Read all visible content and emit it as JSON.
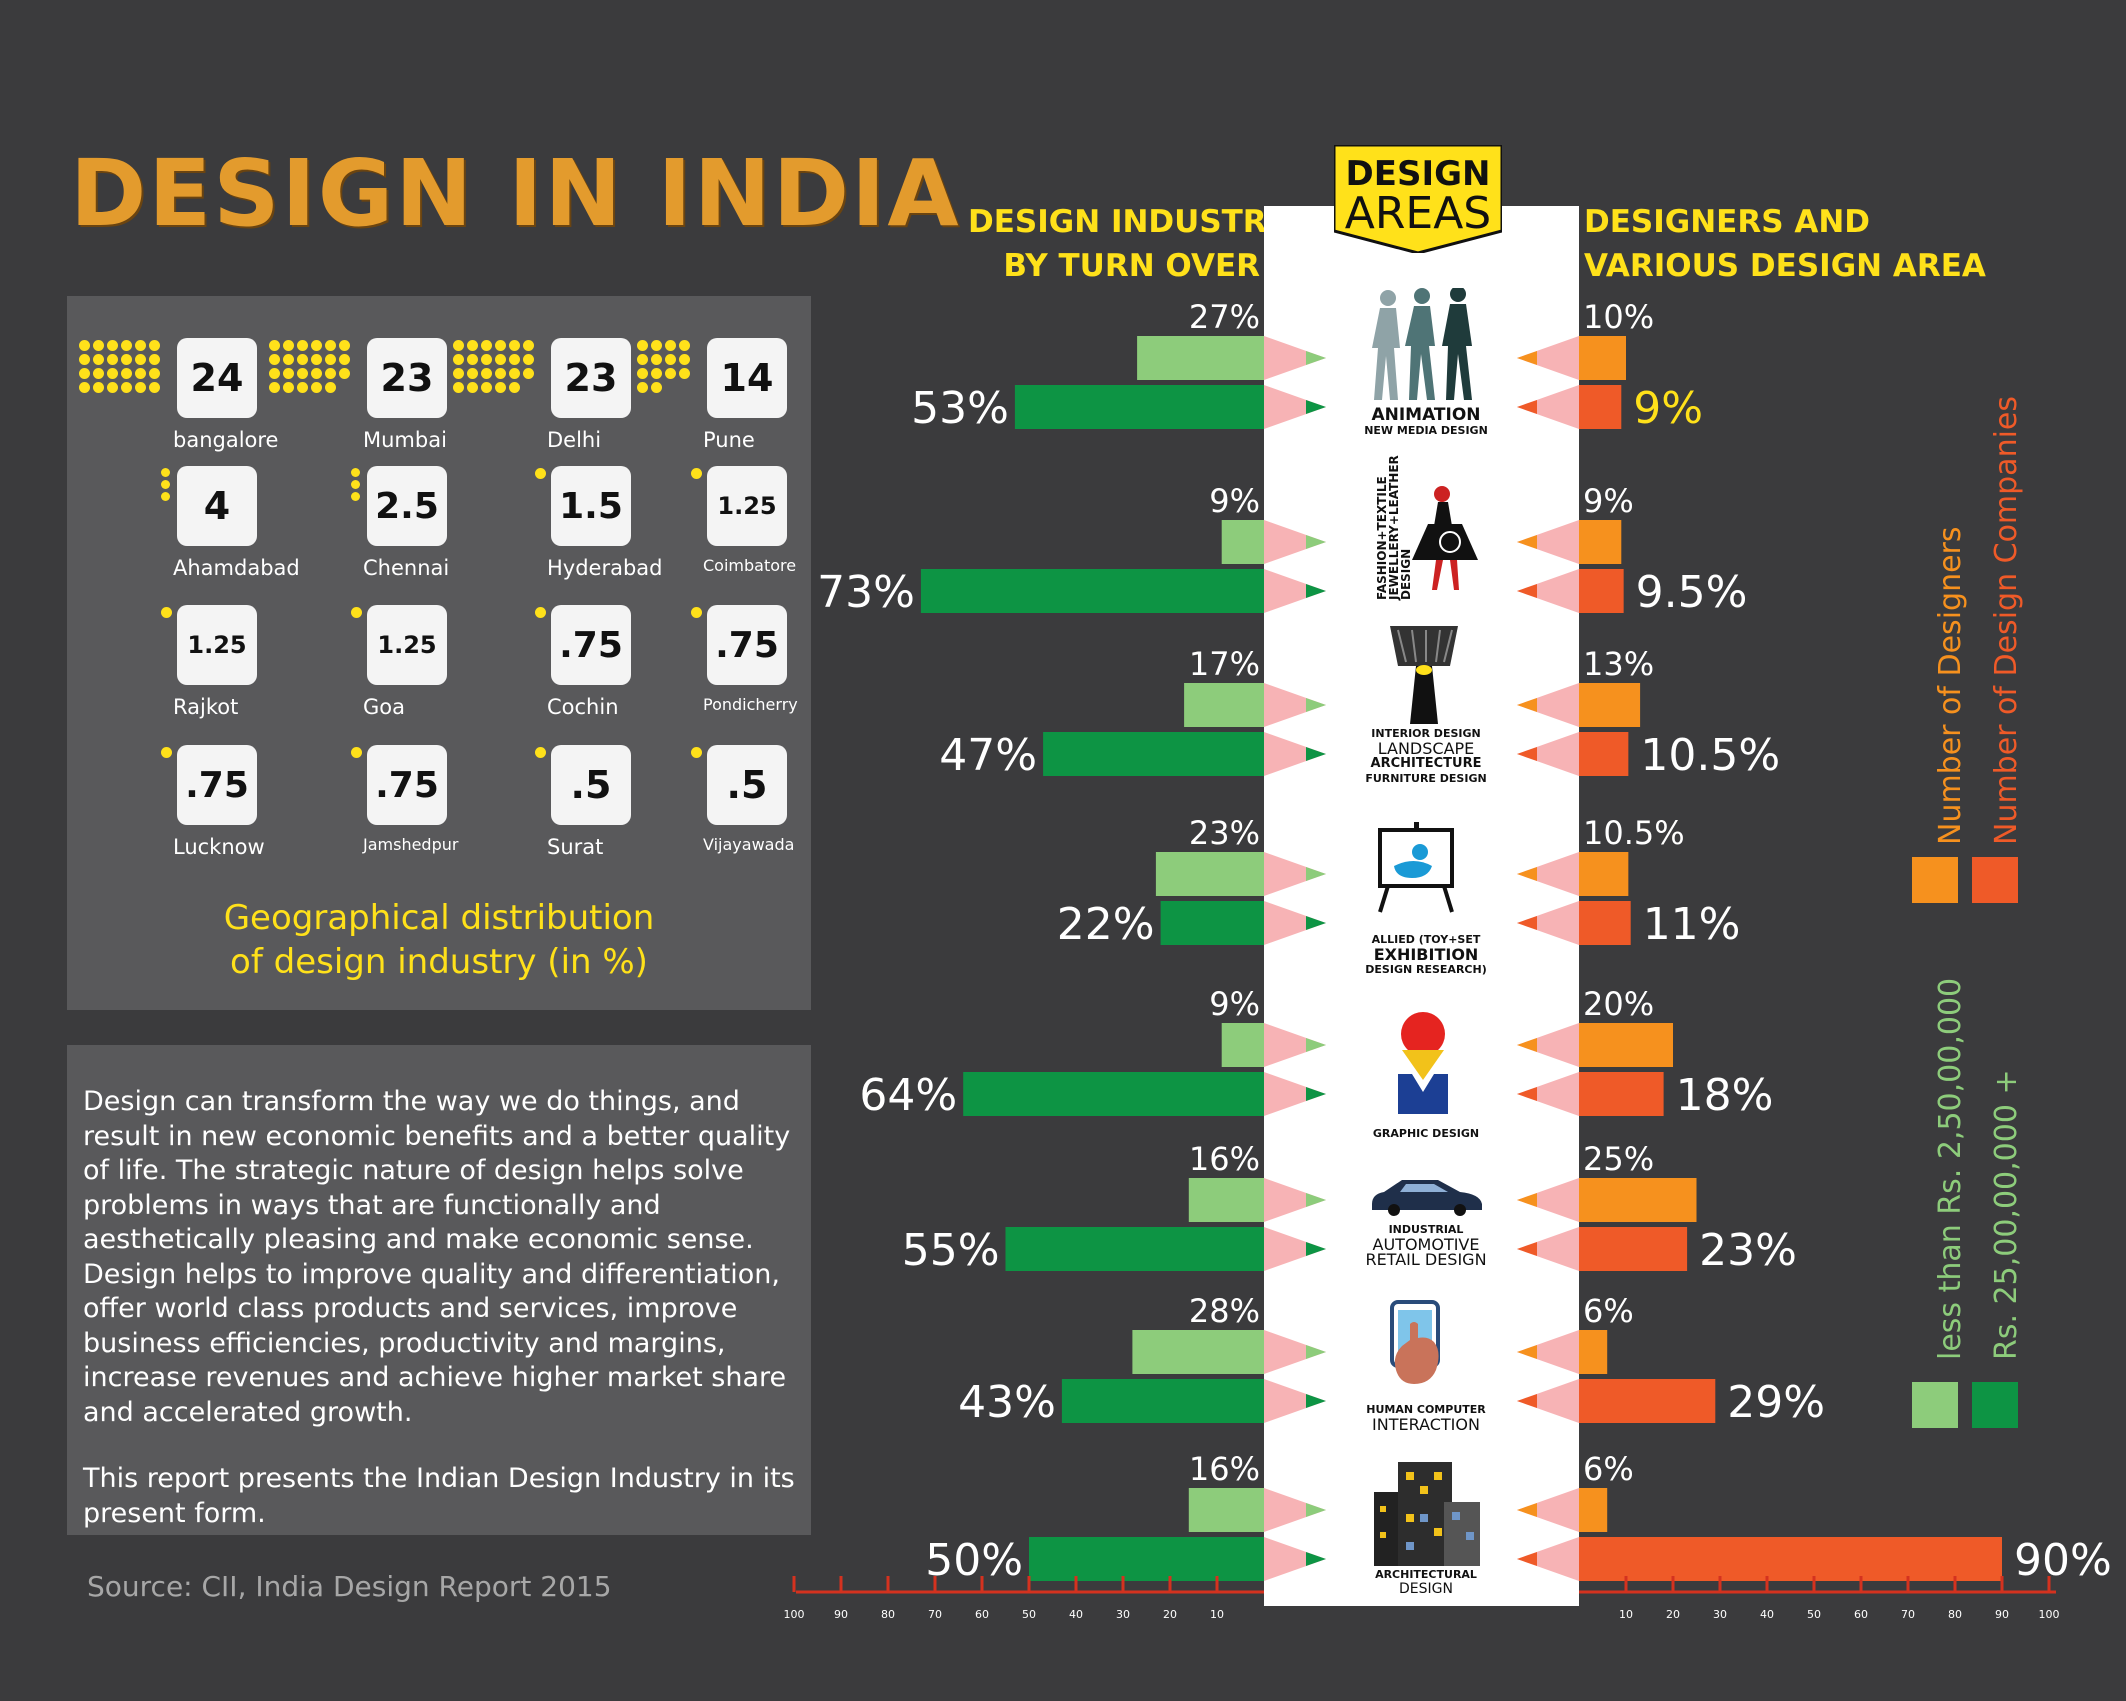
{
  "title": "DESIGN IN INDIA",
  "geo": {
    "caption_line1": "Geographical distribution",
    "caption_line2": "of design industry (in %)",
    "cities": [
      {
        "name": "bangalore",
        "value": "24"
      },
      {
        "name": "Mumbai",
        "value": "23"
      },
      {
        "name": "Delhi",
        "value": "23"
      },
      {
        "name": "Pune",
        "value": "14"
      },
      {
        "name": "Ahamdabad",
        "value": "4"
      },
      {
        "name": "Chennai",
        "value": "2.5"
      },
      {
        "name": "Hyderabad",
        "value": "1.5"
      },
      {
        "name": "Coimbatore",
        "value": "1.25"
      },
      {
        "name": "Rajkot",
        "value": "1.25"
      },
      {
        "name": "Goa",
        "value": "1.25"
      },
      {
        "name": "Cochin",
        "value": ".75"
      },
      {
        "name": "Pondicherry",
        "value": ".75"
      },
      {
        "name": "Lucknow",
        "value": ".75"
      },
      {
        "name": "Jamshedpur",
        "value": ".75"
      },
      {
        "name": "Surat",
        "value": ".5"
      },
      {
        "name": "Vijayawada",
        "value": ".5"
      }
    ],
    "dot_color": "#ffe11a"
  },
  "about": {
    "paragraph1": "Design can transform the way we do things, and result in new economic benefits and a better quality of life. The strategic nature of design helps solve problems in ways that are functionally and aesthetically pleasing and make economic sense. Design helps to improve quality and differentiation, offer world class products and services, improve business efficiencies, productivity and margins, increase revenues and achieve higher market share and accelerated growth.",
    "paragraph2": "This report presents the Indian Design Industry in its present form."
  },
  "source": "Source: CII, India Design Report 2015",
  "left_header": {
    "line1": "DESIGN INDUSTRY",
    "line2": "BY TURN OVER"
  },
  "right_header": {
    "line1": "DESIGNERS AND",
    "line2": "VARIOUS DESIGN AREA"
  },
  "center_header": {
    "line1": "DESIGN",
    "line2": "AREAS"
  },
  "areas": [
    {
      "small": "ANIMATION",
      "sub": "NEW MEDIA DESIGN"
    },
    {
      "small": "FASHION+TEXTILE",
      "sub": "JEWELLERY+LEATHER"
    },
    {
      "small": "INTERIOR DESIGN",
      "main": "LANDSCAPE",
      "sub1": "ARCHITECTURE",
      "sub2": "FURNITURE DESIGN"
    },
    {
      "small": "ALLIED (TOY+SET",
      "main": "EXHIBITION",
      "sub": "DESIGN RESEARCH)"
    },
    {
      "small": "GRAPHIC DESIGN"
    },
    {
      "small": "INDUSTRIAL",
      "main1": "AUTOMOTIVE",
      "main2": "RETAIL DESIGN"
    },
    {
      "small": "HUMAN COMPUTER",
      "main": "INTERACTION"
    },
    {
      "small": "ARCHITECTURAL",
      "main": "DESIGN"
    }
  ],
  "fashion_design_word": "DESIGN",
  "legend": {
    "designers": "Number of Designers",
    "companies": "Number of Design Companies",
    "less_than": "less than Rs. 2,50,00,000",
    "more_than": "Rs. 25,00,00,000 +"
  },
  "colors": {
    "light_green": "#8dcc7b",
    "dark_green": "#0d9444",
    "light_orange": "#f6911e",
    "dark_orange": "#ef5a28",
    "pencil_pink": "#f7b3b5",
    "title": "#e39b2d",
    "header_yellow": "#ffe11a",
    "axis_red": "#d4321f"
  },
  "chart_data": {
    "type": "bar",
    "title": "",
    "categories": [
      "ANIMATION",
      "FASHION+TEXTILE",
      "LANDSCAPE",
      "EXHIBITION",
      "GRAPHIC DESIGN",
      "AUTOMOTIVE",
      "INTERACTION",
      "ARCHITECTURAL DESIGN"
    ],
    "axis_ticks": [
      "100",
      "90",
      "80",
      "70",
      "60",
      "50",
      "40",
      "30",
      "20",
      "10"
    ],
    "right_axis_ticks": [
      "10",
      "20",
      "30",
      "40",
      "50",
      "60",
      "70",
      "80",
      "90",
      "100"
    ],
    "xlim": [
      0,
      100
    ],
    "series": [
      {
        "name": "less than Rs. 2,50,00,000",
        "side": "left",
        "values": [
          27,
          9,
          17,
          23,
          9,
          16,
          28,
          16
        ],
        "labels": [
          "27%",
          "9%",
          "17%",
          "23%",
          "9%",
          "16%",
          "28%",
          "16%"
        ]
      },
      {
        "name": "Rs. 25,00,00,000 +",
        "side": "left",
        "values": [
          53,
          73,
          47,
          22,
          64,
          55,
          43,
          50
        ],
        "labels": [
          "53%",
          "73%",
          "47%",
          "22%",
          "64%",
          "55%",
          "43%",
          "50%"
        ]
      },
      {
        "name": "Number of Designers",
        "side": "right",
        "values": [
          10,
          9,
          13,
          10.5,
          20,
          25,
          6,
          6
        ],
        "labels": [
          "10%",
          "9%",
          "13%",
          "10.5%",
          "20%",
          "25%",
          "6%",
          "6%"
        ]
      },
      {
        "name": "Number of Design Companies",
        "side": "right",
        "values": [
          9,
          9.5,
          10.5,
          11,
          18,
          23,
          29,
          90
        ],
        "labels": [
          "9%",
          "9.5%",
          "10.5%",
          "11%",
          "18%",
          "23%",
          "29%",
          "90%"
        ]
      }
    ]
  }
}
